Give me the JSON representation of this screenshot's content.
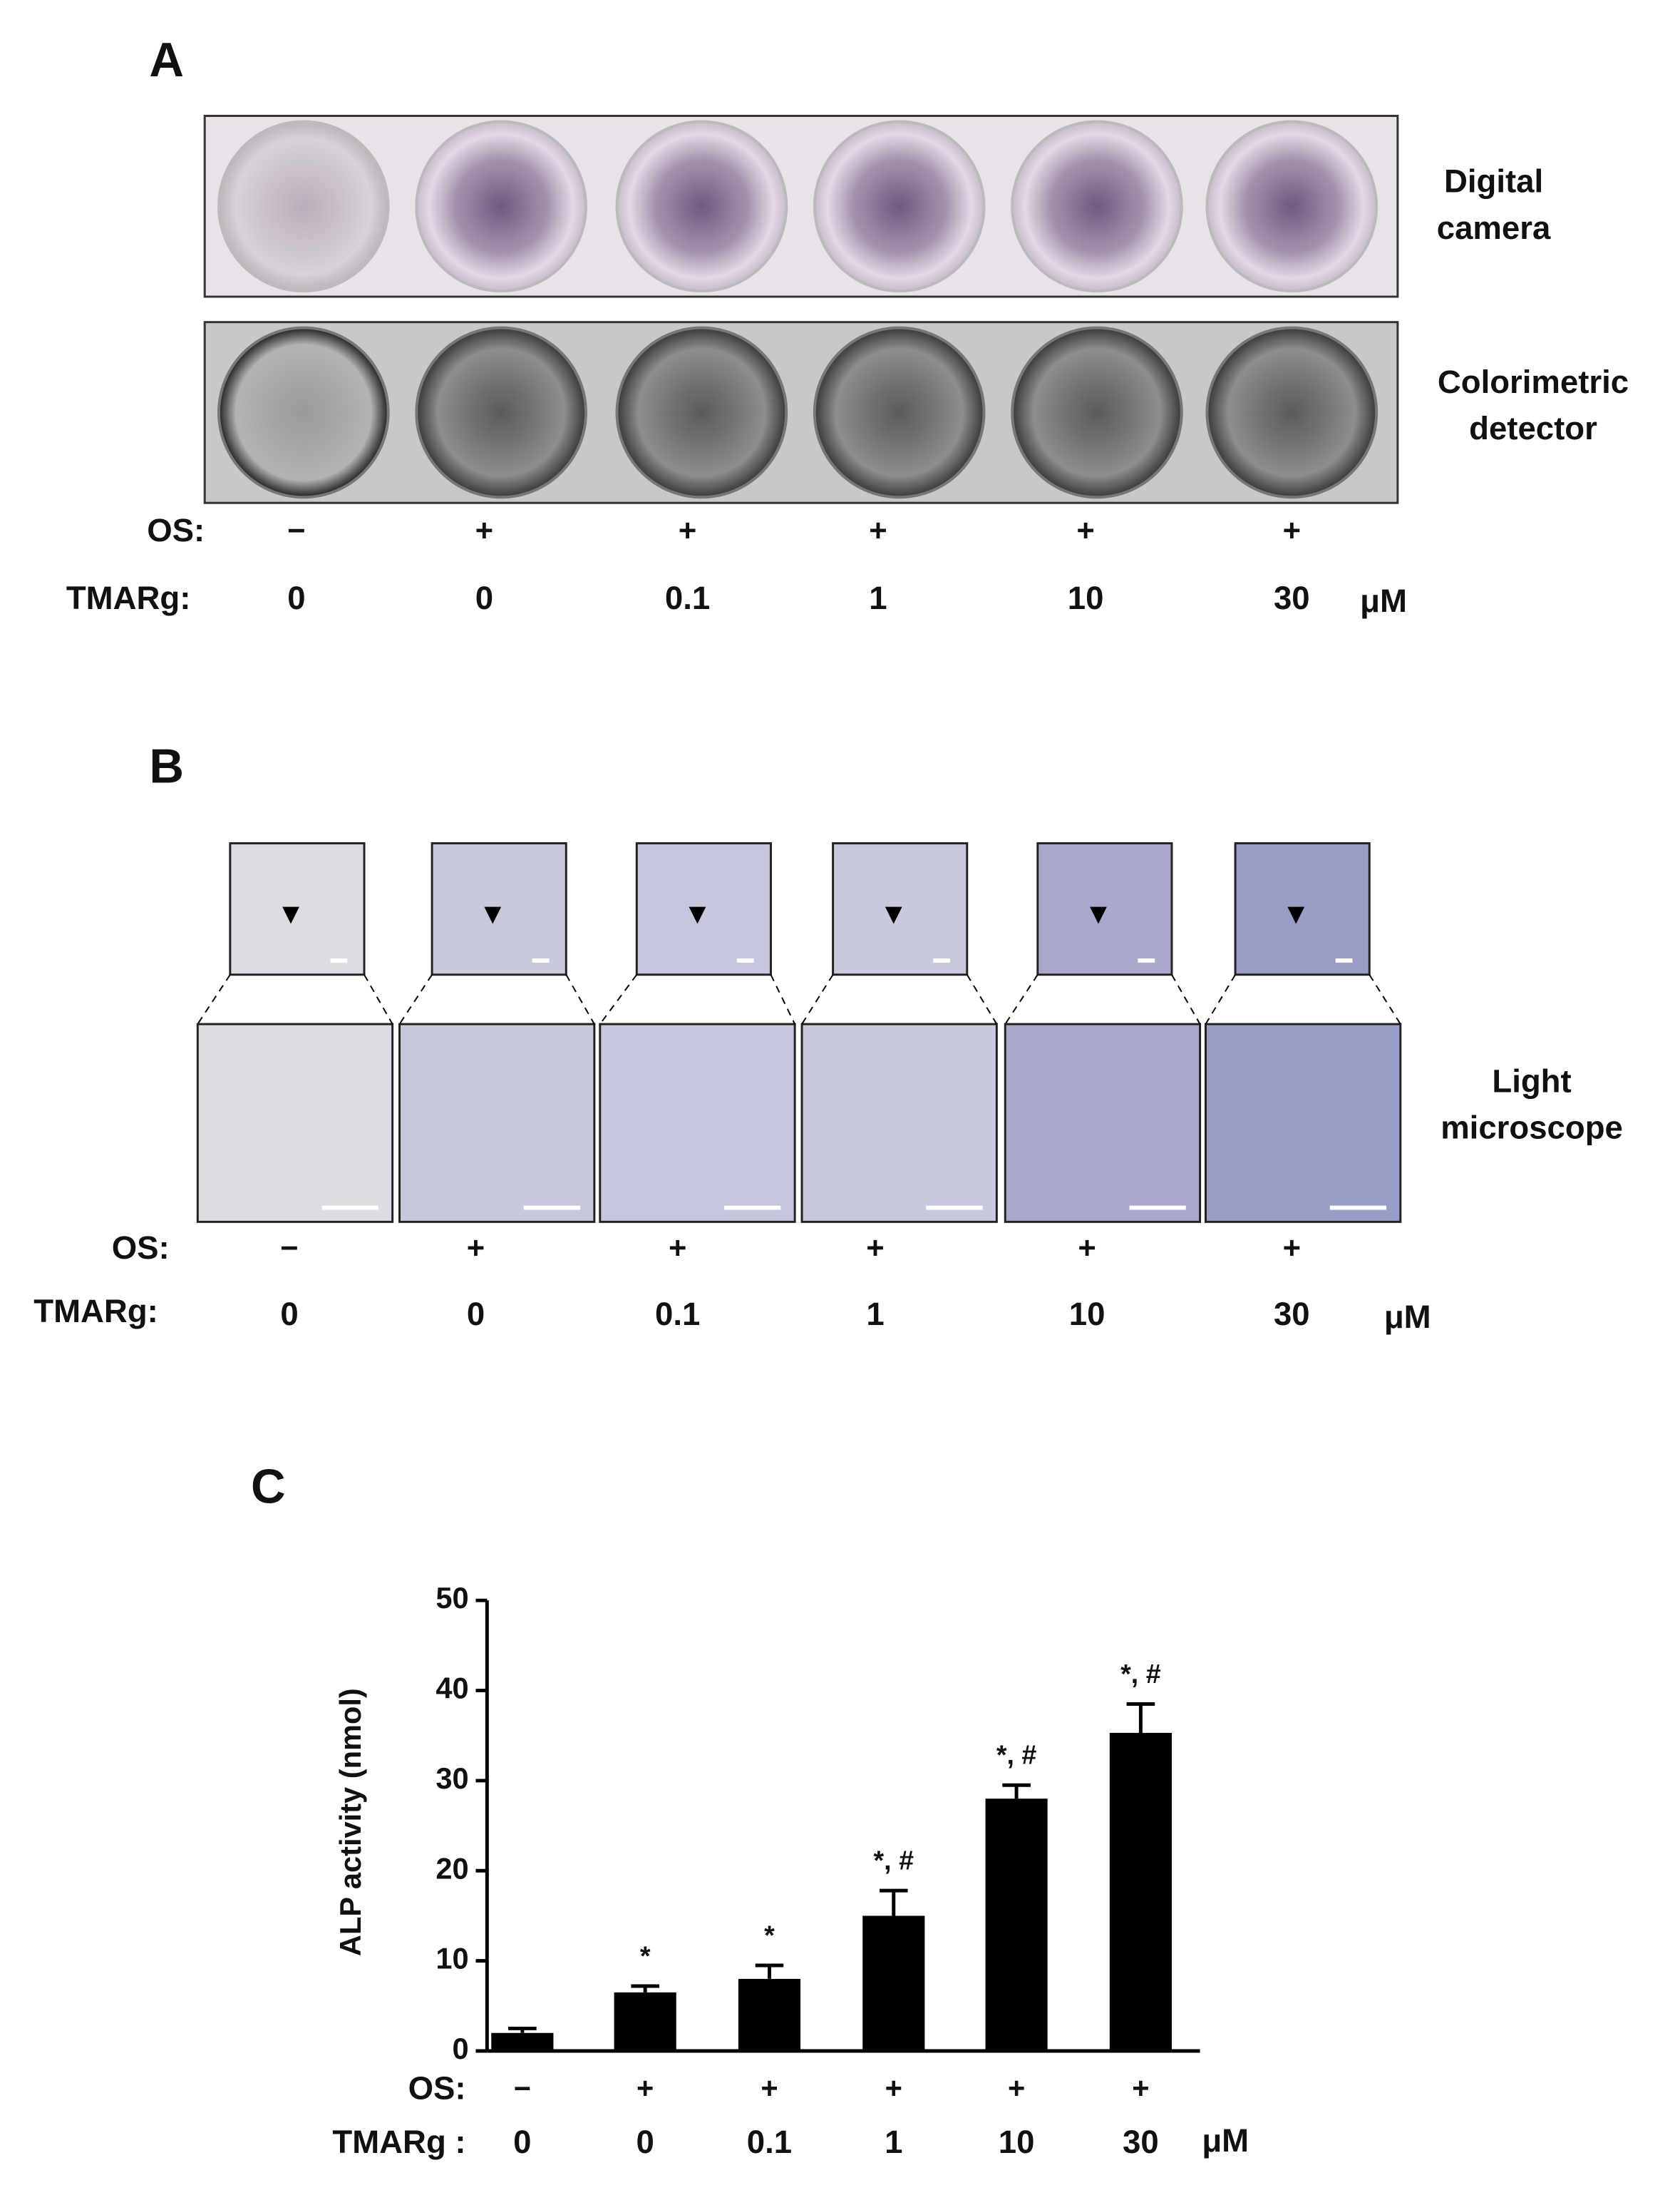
{
  "panel_a": {
    "label": "A",
    "rows": [
      {
        "label_lines": [
          "Digital",
          "camera"
        ]
      },
      {
        "label_lines": [
          "Colorimetric",
          "detector"
        ]
      }
    ],
    "os_label": "OS:",
    "os": [
      "−",
      "+",
      "+",
      "+",
      "+",
      "+"
    ],
    "tmarg_label": "TMARg:",
    "tmarg": [
      "0",
      "0",
      "0.1",
      "1",
      "10",
      "30"
    ],
    "unit": "μM"
  },
  "panel_b": {
    "label": "B",
    "label_lines": [
      "Light",
      "microscope"
    ],
    "os_label": "OS:",
    "os": [
      "−",
      "+",
      "+",
      "+",
      "+",
      "+"
    ],
    "tmarg_label": "TMARg:",
    "tmarg": [
      "0",
      "0",
      "0.1",
      "1",
      "10",
      "30"
    ],
    "unit": "μM"
  },
  "panel_c": {
    "label": "C"
  },
  "chart_data": {
    "type": "bar",
    "ylabel": "ALP activity (nmol)",
    "categories": [
      "0",
      "0",
      "0.1",
      "1",
      "10",
      "30"
    ],
    "category_label": "TMARg :",
    "os_label": "OS:",
    "os": [
      "−",
      "+",
      "+",
      "+",
      "+",
      "+"
    ],
    "unit": "μM",
    "values": [
      2,
      6.5,
      8,
      15,
      28,
      35.3
    ],
    "errors": [
      0.5,
      0.7,
      1.5,
      2.8,
      1.5,
      3.2
    ],
    "significance": [
      null,
      "*",
      "*",
      "*, #",
      "*, #",
      "*, #"
    ],
    "color": "#000000",
    "ylim": [
      0,
      50
    ],
    "yticks": [
      0,
      10,
      20,
      30,
      40,
      50
    ]
  }
}
